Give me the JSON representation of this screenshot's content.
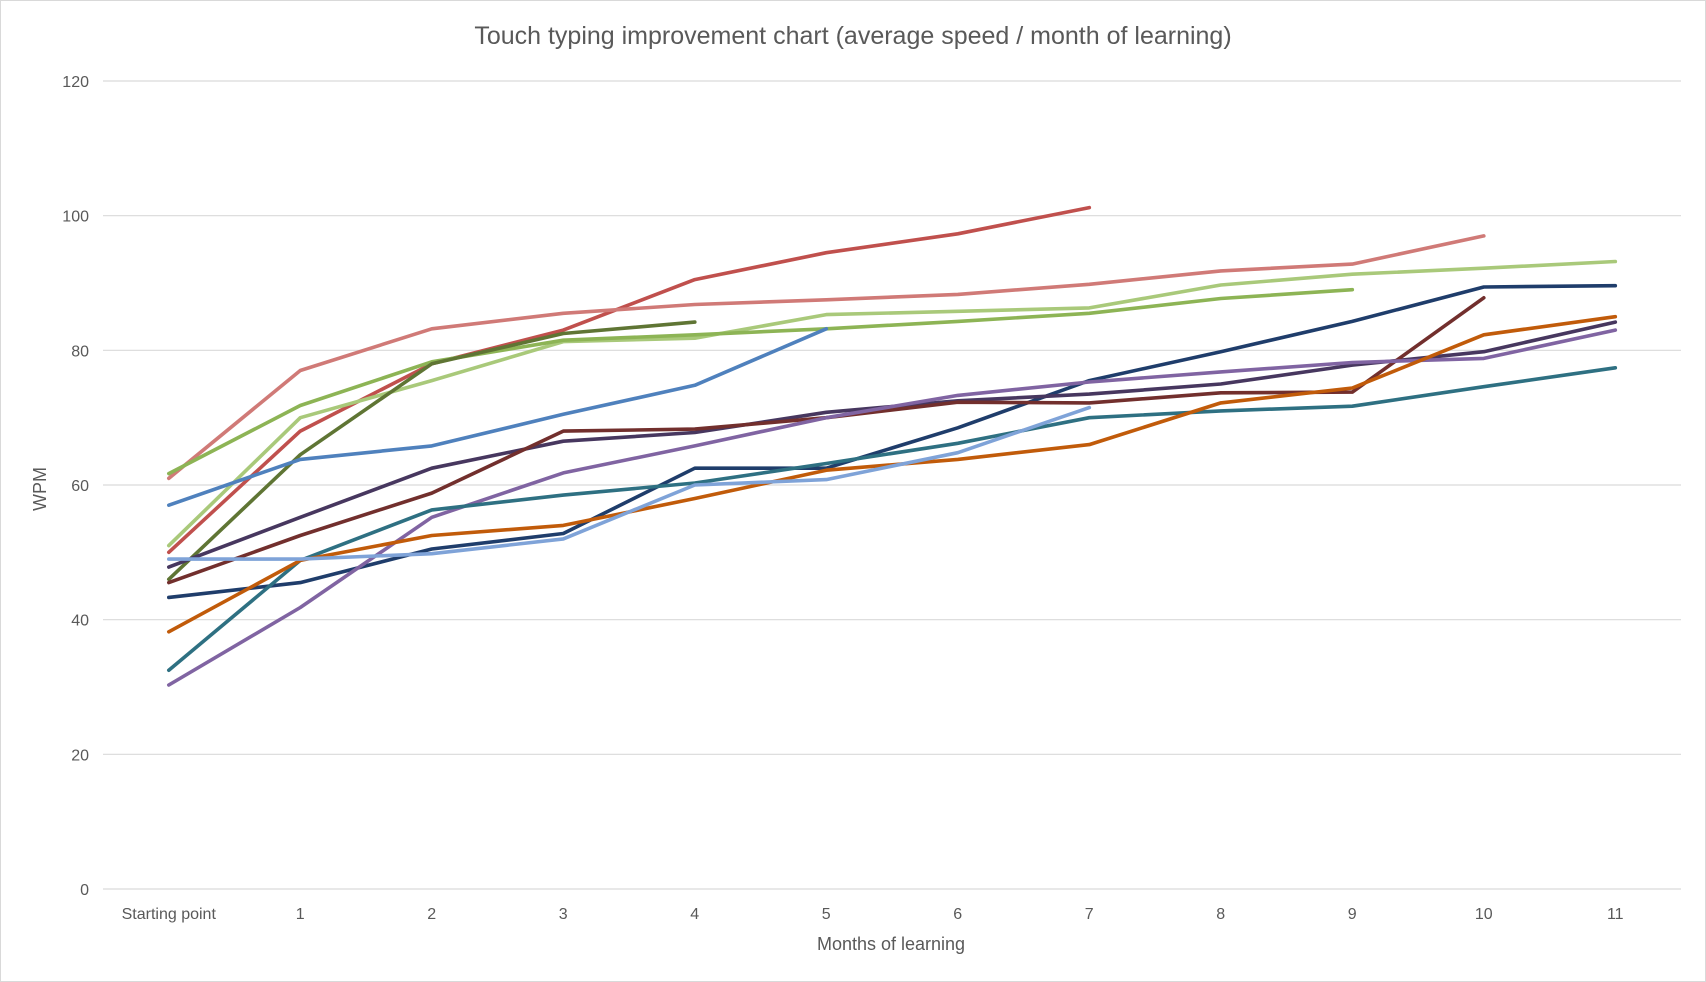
{
  "chart_data": {
    "type": "line",
    "title": "Touch typing improvement chart (average speed / month of learning)",
    "xlabel": "Months of learning",
    "ylabel": "WPM",
    "categories": [
      "Starting point",
      "1",
      "2",
      "3",
      "4",
      "5",
      "6",
      "7",
      "8",
      "9",
      "10",
      "11"
    ],
    "ylim": [
      0,
      120
    ],
    "yticks": [
      0,
      20,
      40,
      60,
      80,
      100,
      120
    ],
    "grid": true,
    "legend": "none",
    "series": [
      {
        "color": "#c0504d",
        "values": [
          50,
          68,
          78,
          83,
          90.5,
          94.5,
          97.3,
          101.2,
          null,
          null,
          null,
          null
        ]
      },
      {
        "color": "#d07a77",
        "values": [
          61,
          77,
          83.2,
          85.5,
          86.8,
          87.5,
          88.3,
          89.8,
          91.8,
          92.8,
          97,
          null
        ]
      },
      {
        "color": "#a9c97a",
        "values": [
          51,
          70,
          75.5,
          81.3,
          81.8,
          85.3,
          85.8,
          86.3,
          89.7,
          91.3,
          92.2,
          93.2
        ]
      },
      {
        "color": "#8db455",
        "values": [
          61.7,
          71.8,
          78.3,
          81.5,
          82.3,
          83.2,
          84.3,
          85.5,
          87.7,
          89,
          null,
          null
        ]
      },
      {
        "color": "#5f7534",
        "values": [
          46,
          64.5,
          78,
          82.5,
          84.2,
          null,
          null,
          null,
          null,
          null,
          null,
          null
        ]
      },
      {
        "color": "#4f81bd",
        "values": [
          57,
          63.8,
          65.8,
          70.5,
          74.8,
          83.2,
          null,
          null,
          null,
          null,
          null,
          null
        ]
      },
      {
        "color": "#1f3d6b",
        "values": [
          43.3,
          45.5,
          50.5,
          52.8,
          62.5,
          62.5,
          68.5,
          75.5,
          79.8,
          84.3,
          89.4,
          89.6
        ]
      },
      {
        "color": "#47375f",
        "values": [
          47.8,
          55.2,
          62.5,
          66.5,
          67.8,
          70.8,
          72.5,
          73.5,
          75,
          77.8,
          79.8,
          84.2
        ]
      },
      {
        "color": "#722f2d",
        "values": [
          45.5,
          52.5,
          58.8,
          68,
          68.3,
          70,
          72.3,
          72.2,
          73.7,
          73.8,
          87.8,
          null
        ]
      },
      {
        "color": "#8064a2",
        "values": [
          30.3,
          41.8,
          55.2,
          61.8,
          65.8,
          70,
          73.3,
          75.3,
          76.8,
          78.2,
          78.8,
          83
        ]
      },
      {
        "color": "#2e7082",
        "values": [
          32.5,
          48.8,
          56.3,
          58.5,
          60.3,
          63.2,
          66.2,
          70,
          71,
          71.7,
          74.6,
          77.4
        ]
      },
      {
        "color": "#c15b0a",
        "values": [
          38.2,
          48.8,
          52.5,
          54,
          58,
          62.2,
          63.8,
          66,
          72.2,
          74.4,
          82.3,
          85
        ]
      },
      {
        "color": "#7fa3d8",
        "values": [
          49,
          49,
          49.8,
          52,
          60,
          60.8,
          64.8,
          71.5,
          null,
          null,
          null,
          null
        ]
      }
    ]
  }
}
